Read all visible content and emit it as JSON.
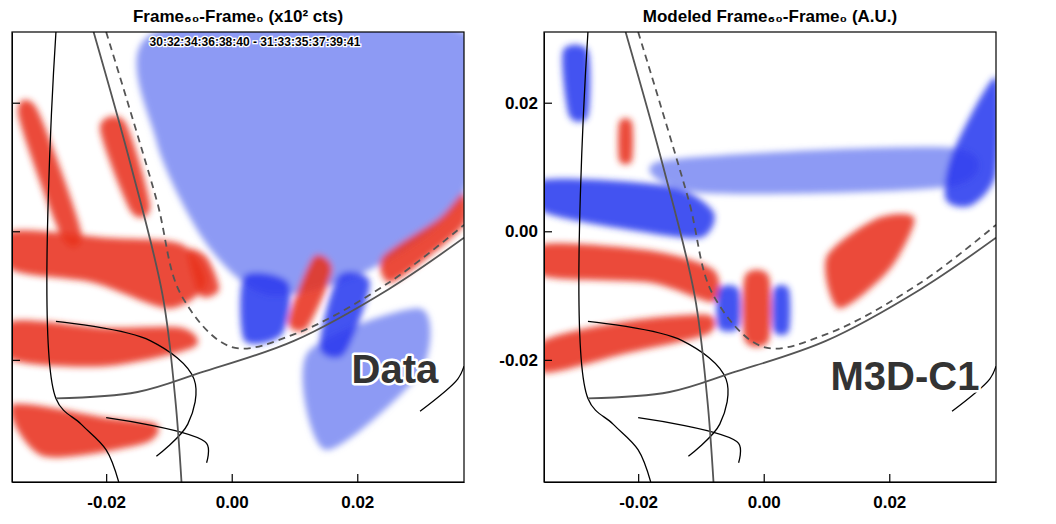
{
  "chart_data": [
    {
      "type": "image",
      "title": "Frame₆₀-Frame₀ (x10² cts)",
      "xlim": [
        -0.035,
        0.037
      ],
      "ylim": [
        -0.039,
        0.031
      ],
      "xticks": [
        {
          "value": -0.02,
          "label": "-0.02"
        },
        {
          "value": 0,
          "label": "0.00"
        },
        {
          "value": 0.02,
          "label": "0.02"
        }
      ],
      "yticks": [
        -0.02,
        0,
        0.02
      ],
      "tick_labels": "x",
      "annotations": [
        {
          "text": "30:32:34:36:38:40 - 31:33:35:37:39:41",
          "x": 0.0037,
          "y": 0.0293
        },
        {
          "text": "Data",
          "x": 0.026,
          "y": -0.0219
        }
      ],
      "regions": [
        {
          "color": "#7d8cf2",
          "points": [
            [
              -0.012,
              0.031
            ],
            [
              0.037,
              0.031
            ],
            [
              0.037,
              0.006
            ],
            [
              0.022,
              -0.006
            ],
            [
              0.006,
              -0.01
            ],
            [
              -0.004,
              -0.002
            ],
            [
              -0.012,
              0.014
            ]
          ]
        },
        {
          "color": "#7d8cf2",
          "points": [
            [
              0.012,
              -0.019
            ],
            [
              0.03,
              -0.012
            ],
            [
              0.03,
              -0.022
            ],
            [
              0.015,
              -0.034
            ]
          ]
        },
        {
          "color": "#e8331f",
          "points": [
            [
              -0.021,
              0.016
            ],
            [
              -0.017,
              0.017
            ],
            [
              -0.013,
              0.004
            ],
            [
              -0.016,
              0.003
            ]
          ]
        },
        {
          "color": "#e8331f",
          "points": [
            [
              -0.034,
              0.018
            ],
            [
              -0.031,
              0.019
            ],
            [
              -0.024,
              0.0
            ],
            [
              -0.027,
              -0.001
            ]
          ]
        },
        {
          "color": "#e8331f",
          "points": [
            [
              -0.035,
              0.0
            ],
            [
              -0.02,
              -0.001
            ],
            [
              -0.008,
              -0.002
            ],
            [
              -0.004,
              -0.008
            ],
            [
              -0.01,
              -0.012
            ],
            [
              -0.022,
              -0.008
            ],
            [
              -0.035,
              -0.006
            ]
          ]
        },
        {
          "color": "#e8331f",
          "points": [
            [
              -0.035,
              -0.014
            ],
            [
              -0.02,
              -0.015
            ],
            [
              -0.008,
              -0.015
            ],
            [
              -0.006,
              -0.018
            ],
            [
              -0.02,
              -0.021
            ],
            [
              -0.035,
              -0.02
            ]
          ]
        },
        {
          "color": "#e8331f",
          "points": [
            [
              -0.035,
              -0.027
            ],
            [
              -0.02,
              -0.029
            ],
            [
              -0.012,
              -0.03
            ],
            [
              -0.014,
              -0.033
            ],
            [
              -0.03,
              -0.035
            ]
          ]
        },
        {
          "color": "#2b3bef",
          "points": [
            [
              0.002,
              -0.007
            ],
            [
              0.009,
              -0.008
            ],
            [
              0.008,
              -0.016
            ],
            [
              0.002,
              -0.017
            ]
          ]
        },
        {
          "color": "#e8331f",
          "points": [
            [
              0.013,
              -0.004
            ],
            [
              0.016,
              -0.006
            ],
            [
              0.012,
              -0.015
            ],
            [
              0.009,
              -0.014
            ]
          ]
        },
        {
          "color": "#2b3bef",
          "points": [
            [
              0.017,
              -0.007
            ],
            [
              0.022,
              -0.008
            ],
            [
              0.018,
              -0.019
            ],
            [
              0.014,
              -0.018
            ]
          ]
        },
        {
          "color": "#e8331f",
          "points": [
            [
              0.024,
              -0.004
            ],
            [
              0.033,
              0.002
            ],
            [
              0.037,
              0.006
            ],
            [
              0.037,
              0.001
            ],
            [
              0.03,
              -0.005
            ],
            [
              0.025,
              -0.008
            ]
          ]
        },
        {
          "color": "#e8331f",
          "points": [
            [
              -0.007,
              -0.003
            ],
            [
              -0.004,
              -0.004
            ],
            [
              -0.002,
              -0.009
            ],
            [
              -0.005,
              -0.01
            ]
          ]
        }
      ],
      "series": [
        {
          "color": "#000000",
          "line_style": "solid",
          "x": [
            -0.028,
            -0.028,
            -0.024,
            -0.02,
            -0.018
          ],
          "y": [
            0.031,
            -0.026,
            -0.03,
            -0.034,
            -0.039
          ]
        },
        {
          "color": "#000000",
          "line_style": "solid",
          "x": [
            -0.028,
            -0.013,
            -0.006,
            -0.007,
            -0.012
          ],
          "y": [
            -0.014,
            -0.017,
            -0.023,
            -0.03,
            -0.035
          ]
        },
        {
          "color": "#000000",
          "line_style": "solid",
          "x": [
            -0.02,
            -0.004,
            -0.004
          ],
          "y": [
            -0.029,
            -0.033,
            -0.036
          ]
        },
        {
          "color": "#000000",
          "line_style": "solid",
          "x": [
            0.03,
            0.036,
            0.037
          ],
          "y": [
            -0.028,
            -0.023,
            -0.021
          ]
        },
        {
          "color": "#555555",
          "line_style": "solid",
          "x": [
            -0.022,
            -0.016,
            -0.011,
            -0.009,
            -0.008
          ],
          "y": [
            0.031,
            0.01,
            -0.01,
            -0.026,
            -0.039
          ]
        },
        {
          "color": "#555555",
          "line_style": "solid",
          "x": [
            -0.028,
            -0.015,
            -0.005,
            0.01,
            0.025,
            0.037
          ],
          "y": [
            -0.026,
            -0.025,
            -0.022,
            -0.017,
            -0.009,
            -0.001
          ]
        },
        {
          "color": "#555555",
          "line_style": "dashed",
          "x": [
            -0.02,
            -0.012,
            -0.008,
            0.0,
            0.01,
            0.025,
            0.037
          ],
          "y": [
            0.031,
            0.005,
            -0.01,
            -0.018,
            -0.016,
            -0.008,
            0.001
          ]
        }
      ]
    },
    {
      "type": "image",
      "title": "Modeled Frame₆₀-Frame₀ (A.U.)",
      "xlim": [
        -0.035,
        0.037
      ],
      "ylim": [
        -0.039,
        0.031
      ],
      "xticks": [
        {
          "value": -0.02,
          "label": "-0.02"
        },
        {
          "value": 0,
          "label": "0.00"
        },
        {
          "value": 0.02,
          "label": "0.02"
        }
      ],
      "yticks": [
        {
          "value": -0.02,
          "label": "-0.02"
        },
        {
          "value": 0,
          "label": "0.00"
        },
        {
          "value": 0.02,
          "label": "0.02"
        }
      ],
      "annotations": [
        {
          "text": "M3D-C1",
          "x": 0.0225,
          "y": -0.023
        }
      ],
      "regions": [
        {
          "color": "#7d8cf2",
          "points": [
            [
              -0.016,
              0.011
            ],
            [
              0.03,
              0.013
            ],
            [
              0.03,
              0.007
            ],
            [
              -0.01,
              0.006
            ]
          ]
        },
        {
          "color": "#2b3bef",
          "points": [
            [
              0.03,
              0.012
            ],
            [
              0.037,
              0.024
            ],
            [
              0.037,
              0.009
            ],
            [
              0.033,
              0.004
            ],
            [
              0.029,
              0.005
            ]
          ]
        },
        {
          "color": "#2b3bef",
          "points": [
            [
              -0.032,
              0.028
            ],
            [
              -0.028,
              0.028
            ],
            [
              -0.028,
              0.018
            ],
            [
              -0.031,
              0.018
            ]
          ]
        },
        {
          "color": "#e8331f",
          "points": [
            [
              -0.023,
              0.017
            ],
            [
              -0.021,
              0.017
            ],
            [
              -0.021,
              0.011
            ],
            [
              -0.023,
              0.011
            ]
          ]
        },
        {
          "color": "#2b3bef",
          "points": [
            [
              -0.035,
              0.008
            ],
            [
              -0.015,
              0.007
            ],
            [
              -0.008,
              0.003
            ],
            [
              -0.01,
              -0.001
            ],
            [
              -0.02,
              0.0
            ],
            [
              -0.035,
              0.003
            ]
          ]
        },
        {
          "color": "#e8331f",
          "points": [
            [
              -0.035,
              -0.002
            ],
            [
              -0.018,
              -0.003
            ],
            [
              -0.008,
              -0.006
            ],
            [
              -0.008,
              -0.011
            ],
            [
              -0.018,
              -0.008
            ],
            [
              -0.035,
              -0.007
            ]
          ]
        },
        {
          "color": "#e8331f",
          "points": [
            [
              -0.035,
              -0.017
            ],
            [
              -0.022,
              -0.014
            ],
            [
              -0.009,
              -0.013
            ],
            [
              -0.009,
              -0.016
            ],
            [
              -0.022,
              -0.019
            ],
            [
              -0.035,
              -0.022
            ]
          ]
        },
        {
          "color": "#2b3bef",
          "points": [
            [
              -0.0072,
              -0.009
            ],
            [
              -0.004,
              -0.009
            ],
            [
              -0.004,
              -0.015
            ],
            [
              -0.0072,
              -0.015
            ]
          ]
        },
        {
          "color": "#e8331f",
          "points": [
            [
              -0.003,
              -0.007
            ],
            [
              0.0008,
              -0.007
            ],
            [
              0.0008,
              -0.017
            ],
            [
              -0.003,
              -0.017
            ]
          ]
        },
        {
          "color": "#2b3bef",
          "points": [
            [
              0.0016,
              -0.009
            ],
            [
              0.004,
              -0.009
            ],
            [
              0.004,
              -0.0155
            ],
            [
              0.0016,
              -0.0155
            ]
          ]
        },
        {
          "color": "#e8331f",
          "points": [
            [
              0.01,
              -0.004
            ],
            [
              0.018,
              0.002
            ],
            [
              0.024,
              0.002
            ],
            [
              0.02,
              -0.006
            ],
            [
              0.012,
              -0.012
            ]
          ]
        }
      ],
      "series": [
        {
          "color": "#000000",
          "line_style": "solid",
          "x": [
            -0.028,
            -0.028,
            -0.024,
            -0.02,
            -0.018
          ],
          "y": [
            0.031,
            -0.026,
            -0.03,
            -0.034,
            -0.039
          ]
        },
        {
          "color": "#000000",
          "line_style": "solid",
          "x": [
            -0.028,
            -0.013,
            -0.006,
            -0.007,
            -0.012
          ],
          "y": [
            -0.014,
            -0.017,
            -0.023,
            -0.03,
            -0.035
          ]
        },
        {
          "color": "#000000",
          "line_style": "solid",
          "x": [
            -0.02,
            -0.004,
            -0.004
          ],
          "y": [
            -0.029,
            -0.033,
            -0.036
          ]
        },
        {
          "color": "#000000",
          "line_style": "solid",
          "x": [
            0.03,
            0.036,
            0.037
          ],
          "y": [
            -0.028,
            -0.023,
            -0.021
          ]
        },
        {
          "color": "#555555",
          "line_style": "solid",
          "x": [
            -0.022,
            -0.016,
            -0.011,
            -0.009,
            -0.008
          ],
          "y": [
            0.031,
            0.01,
            -0.01,
            -0.026,
            -0.039
          ]
        },
        {
          "color": "#555555",
          "line_style": "solid",
          "x": [
            -0.028,
            -0.015,
            -0.005,
            0.01,
            0.025,
            0.037
          ],
          "y": [
            -0.026,
            -0.025,
            -0.022,
            -0.017,
            -0.009,
            -0.001
          ]
        },
        {
          "color": "#555555",
          "line_style": "dashed",
          "x": [
            -0.02,
            -0.012,
            -0.008,
            0.0,
            0.01,
            0.025,
            0.037
          ],
          "y": [
            0.031,
            0.005,
            -0.01,
            -0.018,
            -0.016,
            -0.008,
            0.001
          ]
        }
      ]
    }
  ]
}
